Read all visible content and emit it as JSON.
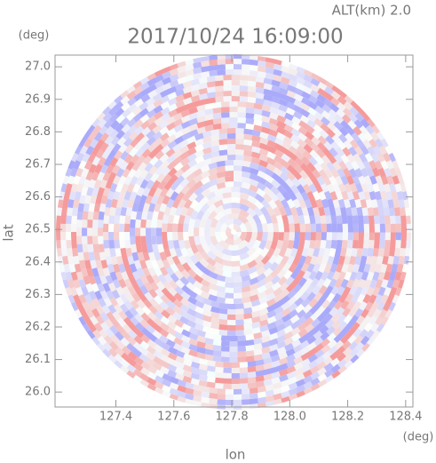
{
  "chart_data": {
    "type": "ppi",
    "title": "2017/10/24 16:09:00",
    "subtitle": "ALT(km) 2.0",
    "x_label": "lon",
    "y_label": "lat",
    "x_unit": "(deg)",
    "y_unit": "(deg)",
    "xlim": [
      127.19,
      128.425
    ],
    "ylim": [
      25.954,
      27.036
    ],
    "xticks": [
      127.4,
      127.6,
      127.8,
      {
        "value": 128.0,
        "label": "128.0"
      },
      128.2,
      128.4
    ],
    "yticks": [
      {
        "value": 26.0,
        "label": "26.0"
      },
      26.1,
      26.2,
      26.3,
      26.4,
      26.5,
      26.6,
      26.7,
      26.8,
      26.9,
      {
        "value": 27.0,
        "label": "27.0"
      }
    ]
  }
}
